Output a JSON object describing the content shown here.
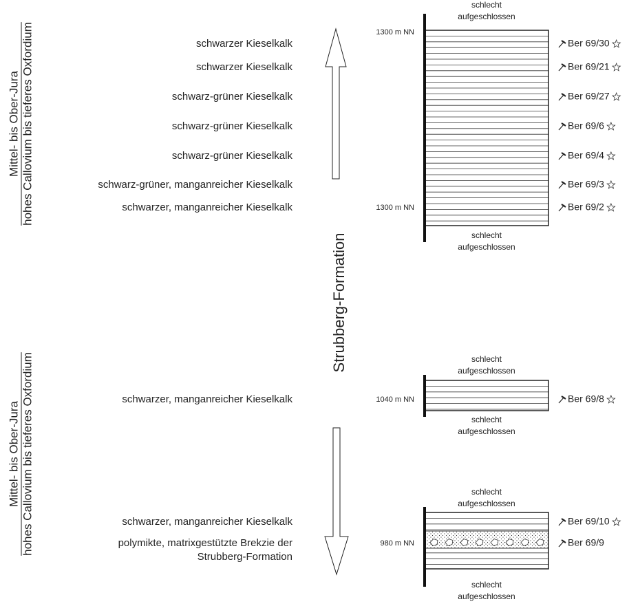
{
  "age_labels": [
    {
      "upper": "Mittel- bis Ober-Jura",
      "lower": "hohes Callovium bis tieferes Oxfordium"
    },
    {
      "upper": "Mittel- bis Ober-Jura",
      "lower": "hohes Callovium bis tieferes Oxfordium"
    }
  ],
  "formation": "Strubberg-Formation",
  "sections": [
    {
      "top_note": [
        "schlecht",
        "aufgeschlossen"
      ],
      "bottom_note": [
        "schlecht",
        "aufgeschlossen"
      ],
      "elevations": [
        "1300 m NN",
        "1300 m NN"
      ],
      "layers": [
        {
          "lithology": [
            "schwarzer Kieselkalk"
          ],
          "sample": "Ber 69/30",
          "star": true
        },
        {
          "lithology": [
            "schwarzer Kieselkalk"
          ],
          "sample": "Ber 69/21",
          "star": true
        },
        {
          "lithology": [
            "schwarz-grüner Kieselkalk"
          ],
          "sample": "Ber 69/27",
          "star": true
        },
        {
          "lithology": [
            "schwarz-grüner Kieselkalk"
          ],
          "sample": "Ber 69/6",
          "star": true
        },
        {
          "lithology": [
            "schwarz-grüner Kieselkalk"
          ],
          "sample": "Ber 69/4",
          "star": true
        },
        {
          "lithology": [
            "schwarz-grüner, manganreicher Kieselkalk"
          ],
          "sample": "Ber 69/3",
          "star": true
        },
        {
          "lithology": [
            "schwarzer, manganreicher Kieselkalk"
          ],
          "sample": "Ber 69/2",
          "star": true
        }
      ]
    },
    {
      "top_note": [
        "schlecht",
        "aufgeschlossen"
      ],
      "bottom_note": [
        "schlecht",
        "aufgeschlossen"
      ],
      "elevations": [
        "1040 m NN"
      ],
      "layers": [
        {
          "lithology": [
            "schwarzer, manganreicher Kieselkalk"
          ],
          "sample": "Ber 69/8",
          "star": true
        }
      ]
    },
    {
      "top_note": [
        "schlecht",
        "aufgeschlossen"
      ],
      "bottom_note": [
        "schlecht",
        "aufgeschlossen"
      ],
      "elevations": [
        "980 m NN"
      ],
      "layers": [
        {
          "lithology": [
            "schwarzer, manganreicher Kieselkalk"
          ],
          "sample": "Ber 69/10",
          "star": true
        },
        {
          "lithology": [
            "polymikte, matrixgestützte Brekzie der",
            "Strubberg-Formation"
          ],
          "sample": "Ber 69/9",
          "star": false
        }
      ]
    }
  ]
}
